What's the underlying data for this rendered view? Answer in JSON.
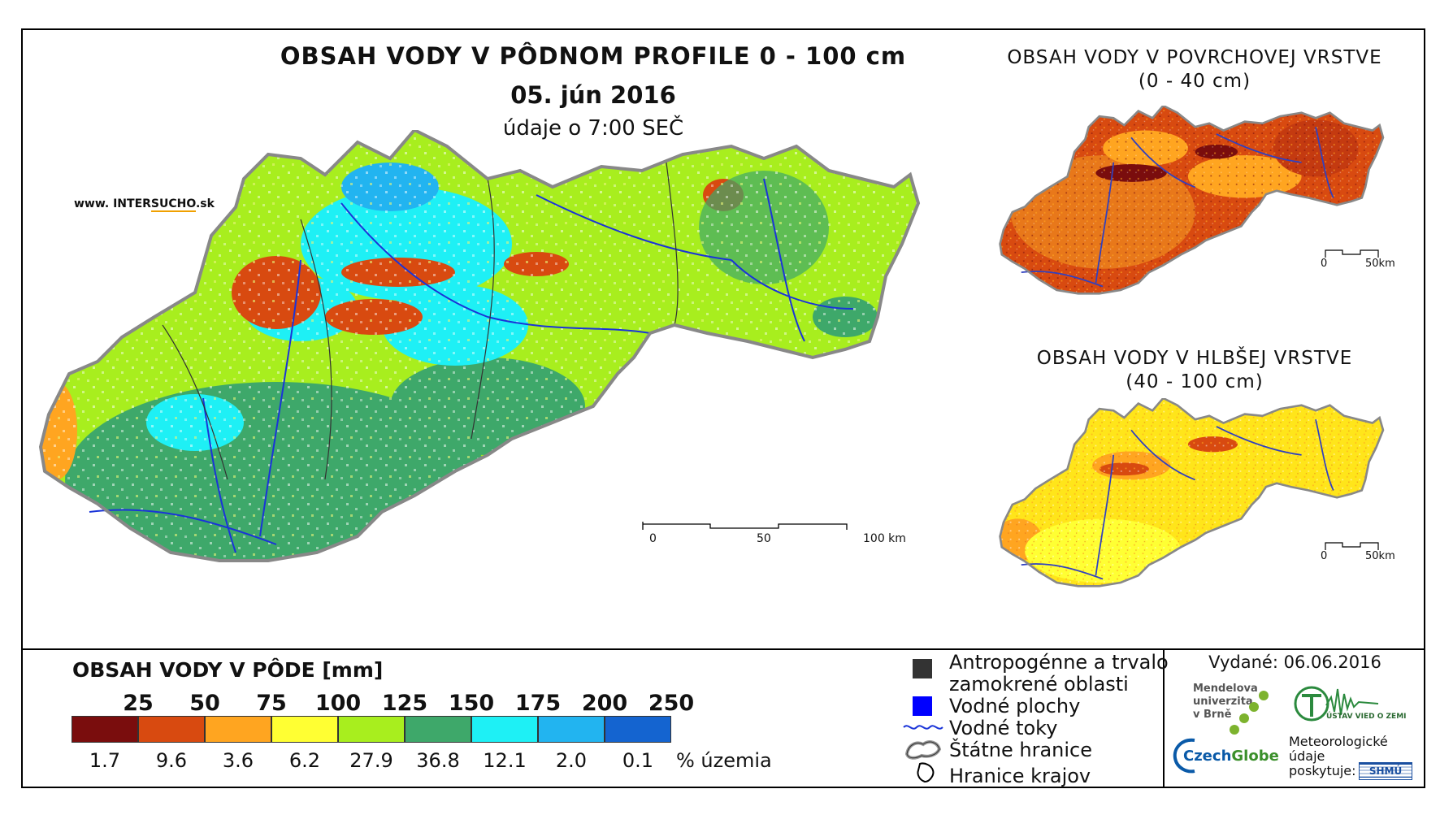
{
  "main": {
    "title": "OBSAH VODY V PÔDNOM PROFILE 0 - 100 cm",
    "date": "05. jún 2016",
    "time": "údaje o 7:00 SEČ",
    "website_prefix": "www. INTER",
    "website_accent": "SUCHO",
    "website_suffix": ".sk",
    "scale": {
      "t0": "0",
      "t1": "50",
      "t2": "100 km"
    }
  },
  "surface": {
    "title_1": "OBSAH VODY V POVRCHOVEJ VRSTVE",
    "title_2": "(0 - 40 cm)",
    "scale": {
      "t0": "0",
      "t1": "50km"
    }
  },
  "deep": {
    "title_1": "OBSAH VODY V HLBŠEJ VRSTVE",
    "title_2": "(40 - 100 cm)",
    "scale": {
      "t0": "0",
      "t1": "50km"
    }
  },
  "legend": {
    "title": "OBSAH VODY V PÔDE [mm]",
    "classes": [
      {
        "bound": "25",
        "color": "#7a0d0d",
        "pct": "1.7"
      },
      {
        "bound": "50",
        "color": "#d84a10",
        "pct": "9.6"
      },
      {
        "bound": "75",
        "color": "#ffa520",
        "pct": "3.6"
      },
      {
        "bound": "100",
        "color": "#ffff33",
        "pct": "6.2"
      },
      {
        "bound": "125",
        "color": "#a8ee1e",
        "pct": "27.9"
      },
      {
        "bound": "150",
        "color": "#3ea86a",
        "pct": "36.8"
      },
      {
        "bound": "175",
        "color": "#1ef0f5",
        "pct": "12.1"
      },
      {
        "bound": "200",
        "color": "#22b4f0",
        "pct": "2.0"
      },
      {
        "bound": "250",
        "color": "#1464d0",
        "pct": "0.1"
      }
    ],
    "pct_unit": "% územia"
  },
  "symbols": {
    "anthropogenic_1": "Antropogénne a trvalo",
    "anthropogenic_2": "zamokrené oblasti",
    "water_areas": "Vodné plochy",
    "rivers": "Vodné toky",
    "state_border": "Štátne hranice",
    "region_border": "Hranice krajov"
  },
  "issued": "Vydané: 06.06.2016",
  "logos": {
    "mendel_1": "Mendelova",
    "mendel_2": "univerzita",
    "mendel_3": "v Brně",
    "czech": "Czech",
    "globe": "Globe",
    "uvz": "ÚSTAV VIED O ZEMI",
    "meteo_1": "Meteorologické",
    "meteo_2": "údaje",
    "meteo_3": "poskytuje:",
    "shmu": "SHMÚ"
  }
}
